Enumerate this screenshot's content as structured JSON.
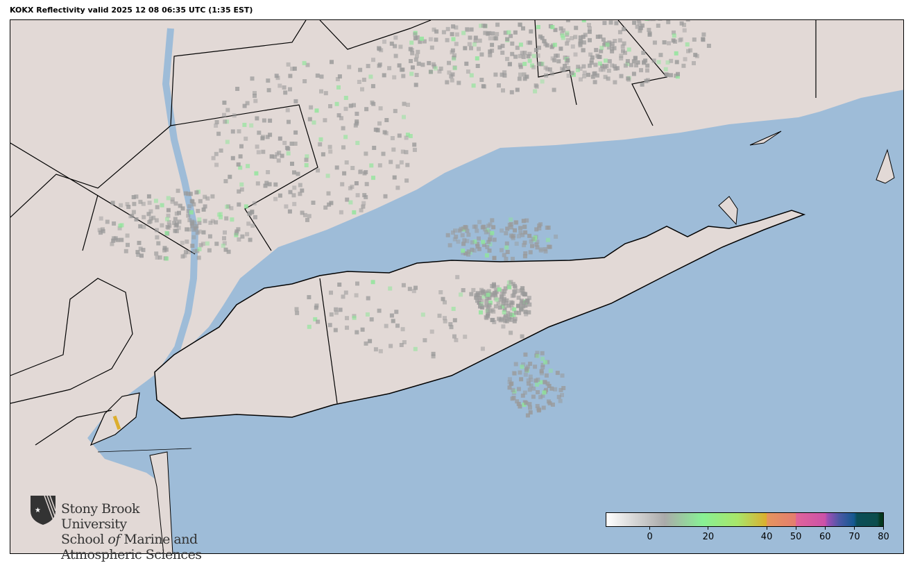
{
  "title": "KOKX Reflectivity valid 2025 12 08 06:35 UTC (1:35 EST)",
  "logo": {
    "line1": "Stony Brook University",
    "line2a": "School ",
    "line2b": "of",
    "line2c": " Marine and",
    "line3": "Atmospheric Sciences",
    "icon": "sbu-shield-star-icon"
  },
  "colorbar": {
    "range": [
      -15,
      80
    ],
    "ticks": [
      "0",
      "20",
      "40",
      "50",
      "60",
      "70",
      "80"
    ],
    "tick_values": [
      0,
      20,
      40,
      50,
      60,
      70,
      80
    ],
    "stops": [
      {
        "v": -15,
        "c": "#ffffff"
      },
      {
        "v": 5,
        "c": "#aaaaaa"
      },
      {
        "v": 18,
        "c": "#88f095"
      },
      {
        "v": 30,
        "c": "#a8e66a"
      },
      {
        "v": 40,
        "c": "#dcae2e"
      },
      {
        "v": 40.1,
        "c": "#e5955e"
      },
      {
        "v": 50,
        "c": "#e47d6f"
      },
      {
        "v": 50.1,
        "c": "#e0649a"
      },
      {
        "v": 60,
        "c": "#cc52a8"
      },
      {
        "v": 61,
        "c": "#9a4fb5"
      },
      {
        "v": 65,
        "c": "#4a58a5"
      },
      {
        "v": 70,
        "c": "#145890"
      },
      {
        "v": 71,
        "c": "#0b4d58"
      },
      {
        "v": 78,
        "c": "#0b4d4c"
      },
      {
        "v": 79,
        "c": "#05381f"
      },
      {
        "v": 80,
        "c": "#05381f"
      }
    ]
  },
  "colors": {
    "land": "#e2d9d6",
    "water": "#9ebcd8",
    "radar_light": "#9a9a9a",
    "radar_green": "#8fe69a"
  }
}
